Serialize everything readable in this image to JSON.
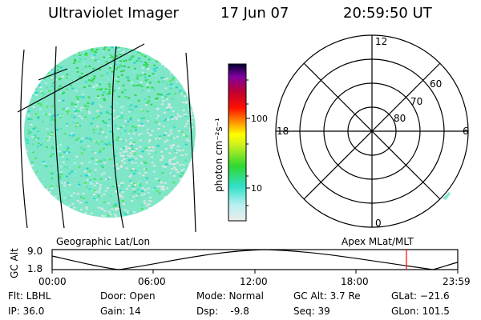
{
  "header": {
    "title": "Ultraviolet Imager",
    "date": "17 Jun 07",
    "time": "20:59:50 UT"
  },
  "geo_panel": {
    "label": "Geographic Lat/Lon"
  },
  "colorbar": {
    "unit_label": "photon cm⁻²s⁻¹",
    "ticks": [
      "100",
      "10"
    ]
  },
  "polar_panel": {
    "label": "Apex MLat/MLT",
    "mlt_labels": {
      "top": "12",
      "left": "18",
      "right": "6",
      "bottom": "0"
    },
    "lat_labels": [
      "60",
      "70",
      "80"
    ]
  },
  "timeline": {
    "y_label": "GC Alt",
    "y_max": "9.0",
    "y_min": "1.8",
    "x_ticks": [
      "00:00",
      "06:00",
      "12:00",
      "18:00",
      "23:59"
    ]
  },
  "status": {
    "flt": "Flt: LBHL",
    "ip": "IP: 36.0",
    "door": "Door: Open",
    "gain": "Gain: 14",
    "mode": "Mode: Normal",
    "dsp": "Dsp:    -9.8",
    "gcalt": "GC Alt: 3.7 Re",
    "seq": "Seq: 39",
    "glat": "GLat: −21.6",
    "glon": "GLon: 101.5"
  },
  "colors": {
    "colorbar_stops": [
      "#e8e8e8",
      "#b0f0f0",
      "#30e0c8",
      "#40e040",
      "#d0f020",
      "#ffff00",
      "#ffa000",
      "#ff0000",
      "#c00040",
      "#800080",
      "#000040"
    ],
    "marker": "#ff0000"
  }
}
